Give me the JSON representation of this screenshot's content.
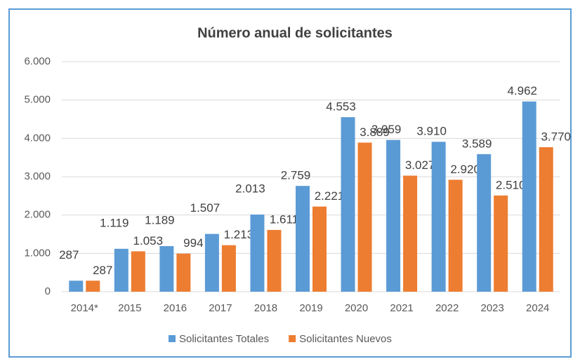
{
  "chart_data": {
    "type": "bar",
    "title": "Número anual de solicitantes",
    "categories": [
      "2014*",
      "2015",
      "2016",
      "2017",
      "2018",
      "2019",
      "2020",
      "2021",
      "2022",
      "2023",
      "2024"
    ],
    "series": [
      {
        "name": "Solicitantes Totales",
        "color": "#5b9bd5",
        "values": [
          287,
          1119,
          1189,
          1507,
          2013,
          2759,
          4553,
          3959,
          3910,
          3589,
          4962
        ],
        "value_labels": [
          "287",
          "1.119",
          "1.189",
          "1.507",
          "2.013",
          "2.759",
          "4.553",
          "3.959",
          "3.910",
          "3.589",
          "4.962"
        ]
      },
      {
        "name": "Solicitantes Nuevos",
        "color": "#ed7d31",
        "values": [
          287,
          1053,
          994,
          1213,
          1611,
          2221,
          3889,
          3027,
          2920,
          2510,
          3770
        ],
        "value_labels": [
          "287",
          "1.053",
          "994",
          "1.213",
          "1.611",
          "2.221",
          "3.889",
          "3.027",
          "2.920",
          "2.510",
          "3.770"
        ]
      }
    ],
    "ylim": [
      0,
      6000
    ],
    "yticks": [
      0,
      {
        "value": 1000,
        "label": "1.000"
      },
      {
        "value": 2000,
        "label": "2.000"
      },
      {
        "value": 3000,
        "label": "3.000"
      },
      {
        "value": 4000,
        "label": "4.000"
      },
      {
        "value": 5000,
        "label": "5.000"
      },
      {
        "value": 6000,
        "label": "6.000"
      }
    ],
    "grid": true,
    "legend": "bottom"
  }
}
